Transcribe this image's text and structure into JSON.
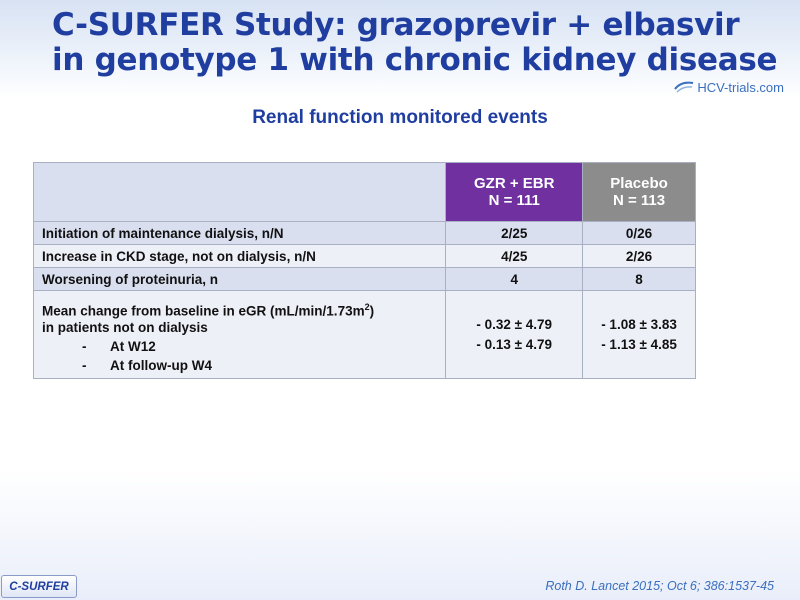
{
  "header": {
    "title_line1": "C-SURFER Study: grazoprevir + elbasvir",
    "title_line2": "in genotype 1 with chronic kidney disease",
    "logo_text": "HCV-trials.com"
  },
  "subtitle": "Renal function monitored events",
  "table": {
    "col1_line1": "GZR + EBR",
    "col1_line2": "N = 111",
    "col2_line1": "Placebo",
    "col2_line2": "N = 113",
    "rows": [
      {
        "label": "Initiation of maintenance dialysis, n/N",
        "gzr": "2/25",
        "placebo": "0/26"
      },
      {
        "label": "Increase in CKD stage, not on dialysis, n/N",
        "gzr": "4/25",
        "placebo": "2/26"
      },
      {
        "label": "Worsening of proteinuria, n",
        "gzr": "4",
        "placebo": "8"
      }
    ],
    "egfr": {
      "label_prefix": "Mean change from baseline in eGR (mL/min/1.73m",
      "label_sup": "2",
      "label_suffix": ")",
      "label_line2": "in patients not on dialysis",
      "items": [
        {
          "dash": "-",
          "label": "At W12",
          "gzr": "- 0.32 ± 4.79",
          "placebo": "- 1.08 ± 3.83"
        },
        {
          "dash": "-",
          "label": "At follow-up W4",
          "gzr": "- 0.13 ± 4.79",
          "placebo": "- 1.13 ± 4.85"
        }
      ]
    }
  },
  "footer": {
    "badge": "C-SURFER",
    "citation": "Roth D. Lancet 2015; Oct 6; 386:1537-45"
  }
}
